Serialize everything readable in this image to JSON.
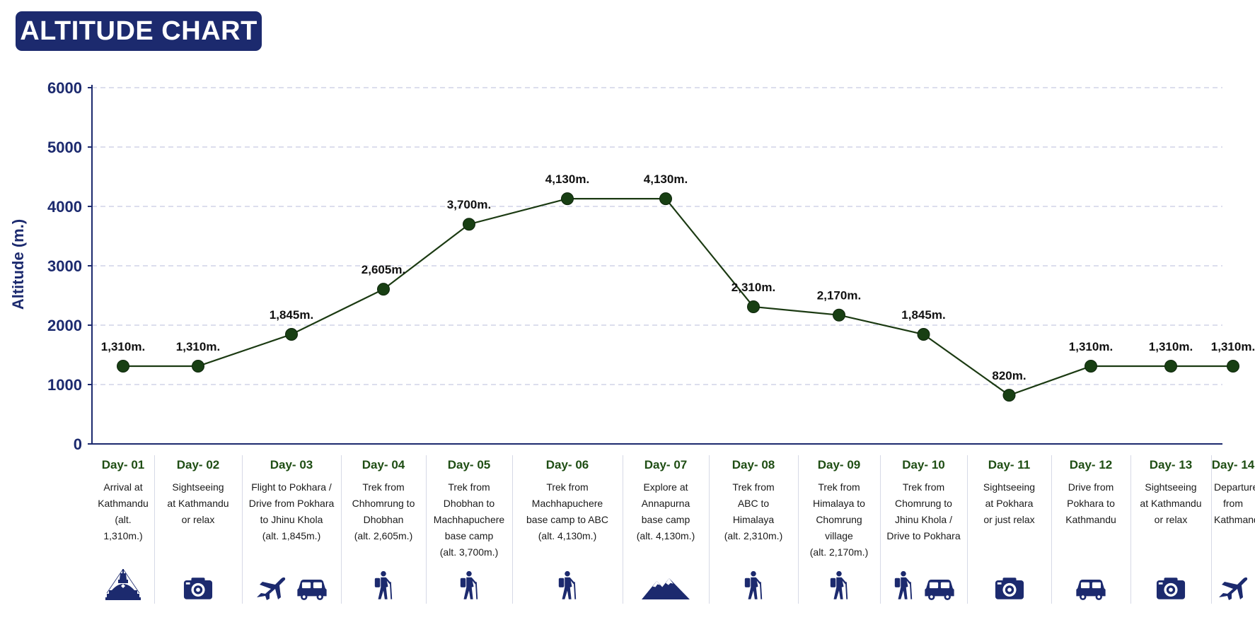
{
  "title": "ALTITUDE CHART",
  "colors": {
    "navy": "#1c2a6e",
    "line": "#1b3a12",
    "point": "#183f13",
    "day_label": "#1f4e14"
  },
  "chart_data": {
    "type": "line",
    "title": "ALTITUDE CHART",
    "xlabel": "",
    "ylabel": "Altitude (m.)",
    "ylim": [
      0,
      6000
    ],
    "yticks": [
      "0",
      "1000",
      "2000",
      "3000",
      "4000",
      "5000",
      "6000"
    ],
    "grid": true,
    "categories": [
      "Day- 01",
      "Day- 02",
      "Day- 03",
      "Day- 04",
      "Day- 05",
      "Day- 06",
      "Day- 07",
      "Day- 08",
      "Day- 09",
      "Day- 10",
      "Day- 11",
      "Day- 12",
      "Day- 13",
      "Day- 14"
    ],
    "series": [
      {
        "values": [
          1310,
          1310,
          1845,
          2605,
          3700,
          4130,
          4130,
          2310,
          2170,
          1845,
          820,
          1310,
          1310,
          1310
        ],
        "labels": [
          "1,310m.",
          "1,310m.",
          "1,845m.",
          "2,605m.",
          "3,700m.",
          "4,130m.",
          "4,130m.",
          "2,310m.",
          "2,170m.",
          "1,845m.",
          "820m.",
          "1,310m.",
          "1,310m.",
          "1,310m."
        ]
      }
    ]
  },
  "days": [
    {
      "day": "Day- 01",
      "desc": [
        "Arrival at",
        "Kathmandu",
        "(alt. 1,310m.)"
      ],
      "icons": [
        "stupa-icon"
      ]
    },
    {
      "day": "Day- 02",
      "desc": [
        "Sightseeing",
        "at Kathmandu",
        "or relax"
      ],
      "icons": [
        "camera-icon"
      ]
    },
    {
      "day": "Day- 03",
      "desc": [
        "Flight to Pokhara /",
        "Drive from Pokhara",
        "to Jhinu Khola",
        "(alt. 1,845m.)"
      ],
      "icons": [
        "airplane-icon",
        "car-icon"
      ]
    },
    {
      "day": "Day- 04",
      "desc": [
        "Trek from",
        "Chhomrung to",
        "Dhobhan",
        "(alt. 2,605m.)"
      ],
      "icons": [
        "hiker-icon"
      ]
    },
    {
      "day": "Day- 05",
      "desc": [
        "Trek from",
        "Dhobhan to",
        "Machhapuchere",
        "base camp",
        "(alt. 3,700m.)"
      ],
      "icons": [
        "hiker-icon"
      ]
    },
    {
      "day": "Day- 06",
      "desc": [
        "Trek from",
        "Machhapuchere",
        "base camp to ABC",
        "(alt. 4,130m.)"
      ],
      "icons": [
        "hiker-icon"
      ]
    },
    {
      "day": "Day- 07",
      "desc": [
        "Explore at",
        "Annapurna",
        "base camp",
        "(alt. 4,130m.)"
      ],
      "icons": [
        "mountain-icon"
      ]
    },
    {
      "day": "Day- 08",
      "desc": [
        "Trek from",
        "ABC to",
        "Himalaya",
        "(alt. 2,310m.)"
      ],
      "icons": [
        "hiker-icon"
      ]
    },
    {
      "day": "Day- 09",
      "desc": [
        "Trek from",
        "Himalaya to",
        "Chomrung",
        "village",
        "(alt. 2,170m.)"
      ],
      "icons": [
        "hiker-icon"
      ]
    },
    {
      "day": "Day- 10",
      "desc": [
        "Trek from",
        "Chomrung to",
        "Jhinu Khola /",
        "Drive to Pokhara"
      ],
      "icons": [
        "hiker-icon",
        "car-icon"
      ]
    },
    {
      "day": "Day- 11",
      "desc": [
        "Sightseeing",
        "at Pokhara",
        "or just relax"
      ],
      "icons": [
        "camera-icon"
      ]
    },
    {
      "day": "Day- 12",
      "desc": [
        "Drive from",
        "Pokhara to",
        "Kathmandu"
      ],
      "icons": [
        "car-icon"
      ]
    },
    {
      "day": "Day- 13",
      "desc": [
        "Sightseeing",
        "at Kathmandu",
        "or relax"
      ],
      "icons": [
        "camera-icon"
      ]
    },
    {
      "day": "Day- 14",
      "desc": [
        "Departure",
        "from",
        "Kathmandu"
      ],
      "icons": [
        "airplane-icon"
      ]
    }
  ]
}
